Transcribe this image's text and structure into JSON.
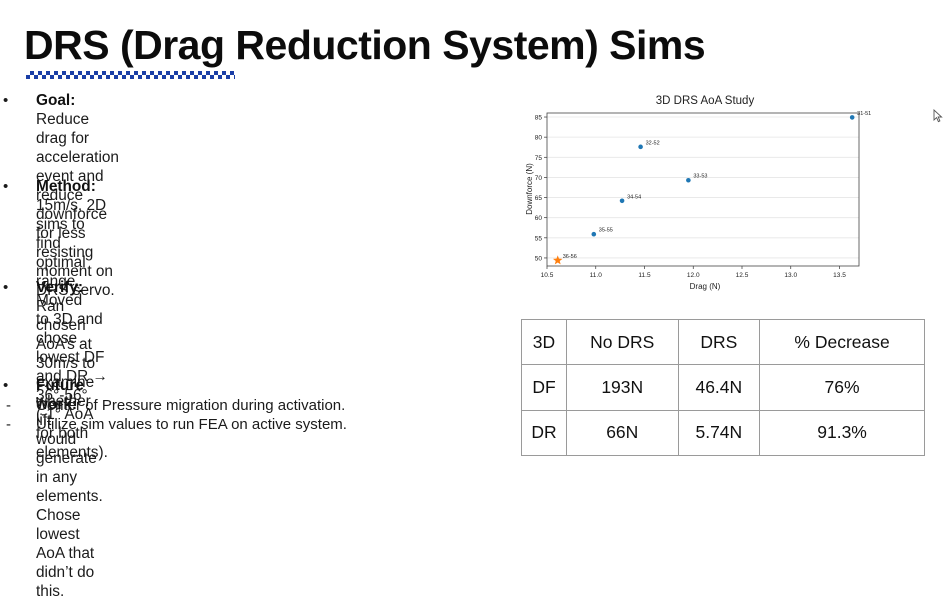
{
  "slide": {
    "title": "DRS (Drag Reduction System) Sims",
    "bullets": [
      {
        "label": "Goal:",
        "line1": " Reduce drag for acceleration event and reduce",
        "line2": "downforce for less resisting moment on DRS servo.",
        "line3": ""
      },
      {
        "label": "Method:",
        "line1": " 15m/s, 2D sims to find optimal range. Moved",
        "line2": "to 3D and chose lowest DF and DR → 36°-56° (-1° AoA",
        "line3": "for both elements)."
      },
      {
        "label": "Verify:",
        "line1": " Ran chosen AoA’s at 30m/s to examine whether lift",
        "line2": "would generate in any elements. Chose lowest AoA that",
        "line3": "didn’t do this."
      },
      {
        "label": "Future work:",
        "line1": "",
        "line2": "",
        "line3": ""
      }
    ],
    "future_items": [
      "Center of Pressure migration during activation.",
      "Utilize sim values to run FEA on active system."
    ]
  },
  "chart_data": {
    "type": "scatter",
    "title": "3D DRS AoA Study",
    "xlabel": "Drag (N)",
    "ylabel": "Downforce (N)",
    "xlim": [
      10.5,
      13.7
    ],
    "ylim": [
      48,
      86
    ],
    "xticks": [
      "10.5",
      "11.0",
      "11.5",
      "12.0",
      "12.5",
      "13.0",
      "13.5"
    ],
    "yticks": [
      "50",
      "55",
      "60",
      "65",
      "70",
      "75",
      "80",
      "85"
    ],
    "grid": "horizontal",
    "point_color": "#1f77b4",
    "highlight_color": "#ff7f0e",
    "points": [
      {
        "x": 13.63,
        "y": 84.9,
        "label": "31-51"
      },
      {
        "x": 11.46,
        "y": 77.6,
        "label": "32-52"
      },
      {
        "x": 11.95,
        "y": 69.3,
        "label": "33-53"
      },
      {
        "x": 11.27,
        "y": 64.2,
        "label": "34-54"
      },
      {
        "x": 10.98,
        "y": 55.9,
        "label": "35-55"
      },
      {
        "x": 10.61,
        "y": 49.4,
        "label": "36-56",
        "highlight": true
      }
    ]
  },
  "results_table": {
    "headers": [
      "3D",
      "No DRS",
      "DRS",
      "% Decrease"
    ],
    "rows": [
      [
        "DF",
        "193N",
        "46.4N",
        "76%"
      ],
      [
        "DR",
        "66N",
        "5.74N",
        "91.3%"
      ]
    ]
  }
}
